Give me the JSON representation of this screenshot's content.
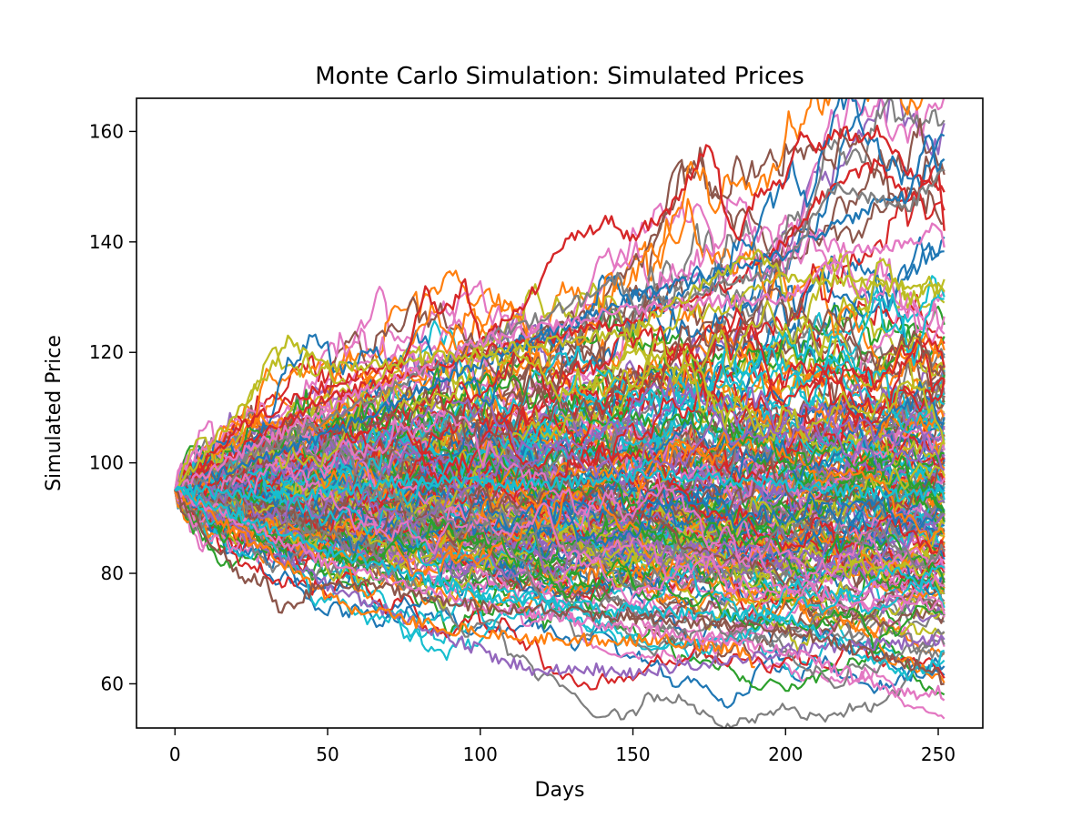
{
  "chart_data": {
    "type": "line",
    "title": "Monte Carlo Simulation: Simulated Prices",
    "xlabel": "Days",
    "ylabel": "Simulated Price",
    "xlim": [
      -12.6,
      264.6
    ],
    "ylim": [
      52,
      166
    ],
    "x_ticks": [
      0,
      50,
      100,
      150,
      200,
      250
    ],
    "y_ticks": [
      60,
      80,
      100,
      120,
      140,
      160
    ],
    "grid": false,
    "legend": "none",
    "colors": [
      "#1f77b4",
      "#ff7f0e",
      "#2ca02c",
      "#d62728",
      "#9467bd",
      "#8c564b",
      "#e377c2",
      "#7f7f7f",
      "#bcbd22",
      "#17becf"
    ],
    "simulation": {
      "start_price": 95,
      "days": 252,
      "paths": 200
    },
    "series": [
      {
        "color": "#d62728",
        "x": [
          0,
          20,
          40,
          60,
          75,
          80,
          82,
          85,
          90,
          93,
          95,
          97,
          100,
          110,
          120,
          125,
          130,
          135,
          140,
          143,
          145,
          150,
          155,
          160,
          165,
          170,
          173,
          175,
          178,
          180,
          185,
          190,
          195,
          200,
          203,
          205,
          210,
          215,
          220,
          225,
          230,
          235,
          240,
          245,
          250,
          252
        ],
        "y": [
          95,
          106,
          112,
          116,
          118,
          128,
          133,
          128,
          128,
          130,
          133,
          128,
          123,
          126,
          133,
          138,
          141,
          142,
          143,
          145,
          142,
          141,
          143,
          145,
          148,
          153,
          156,
          157,
          153,
          145,
          141,
          148,
          150,
          151,
          156,
          161,
          157,
          159,
          160,
          158,
          160,
          157,
          153,
          151,
          150,
          149
        ]
      },
      {
        "color": "#d62728",
        "x": [
          0,
          50,
          100,
          150,
          180,
          200,
          210,
          220,
          230,
          240,
          245,
          250,
          252
        ],
        "y": [
          95,
          112,
          120,
          126,
          132,
          140,
          147,
          152,
          154,
          148,
          150,
          154,
          142
        ]
      },
      {
        "color": "#1f77b4",
        "x": [
          0,
          50,
          100,
          150,
          200,
          220,
          230,
          240,
          245,
          247,
          250,
          252
        ],
        "y": [
          95,
          105,
          118,
          130,
          138,
          144,
          147,
          148,
          157,
          160,
          152,
          155
        ]
      },
      {
        "color": "#7f7f7f",
        "x": [
          0,
          50,
          100,
          140,
          145,
          150,
          200,
          215,
          240,
          252
        ],
        "y": [
          95,
          108,
          122,
          131,
          134,
          128,
          135,
          150,
          146,
          153
        ]
      },
      {
        "color": "#e377c2",
        "x": [
          0,
          50,
          100,
          150,
          200,
          220,
          240,
          245,
          250,
          252
        ],
        "y": [
          95,
          110,
          122,
          128,
          130,
          138,
          140,
          141,
          143,
          139
        ]
      },
      {
        "color": "#bcbd22",
        "x": [
          0,
          30,
          37,
          40,
          50,
          100,
          150,
          190,
          200,
          252
        ],
        "y": [
          95,
          116,
          122,
          121,
          117,
          120,
          124,
          138,
          134,
          131
        ]
      },
      {
        "color": "#9467bd",
        "x": [
          0,
          30,
          50,
          100,
          120,
          130,
          150,
          200,
          252
        ],
        "y": [
          95,
          84,
          78,
          66,
          62,
          63,
          62,
          66,
          68
        ]
      },
      {
        "color": "#ff7f0e",
        "x": [
          0,
          40,
          55,
          90,
          120,
          160,
          185,
          190
        ],
        "y": [
          95,
          80,
          74,
          70,
          68,
          68,
          66,
          63
        ]
      },
      {
        "color": "#e377c2",
        "x": [
          0,
          50,
          100,
          150,
          200,
          230,
          240,
          250,
          252
        ],
        "y": [
          95,
          82,
          74,
          70,
          66,
          60,
          58,
          59,
          57
        ]
      },
      {
        "color": "#17becf",
        "x": [
          0,
          50,
          100,
          150,
          200,
          230,
          240,
          250,
          252
        ],
        "y": [
          95,
          84,
          76,
          73,
          72,
          64,
          61,
          64,
          66
        ]
      },
      {
        "color": "#8c564b",
        "x": [
          0,
          20,
          30,
          35,
          40,
          50,
          100,
          200,
          250,
          252
        ],
        "y": [
          95,
          80,
          78,
          73,
          75,
          79,
          74,
          70,
          62,
          60
        ]
      },
      {
        "color": "#17becf",
        "x": [
          0,
          40,
          80,
          120,
          160,
          200,
          240,
          252
        ],
        "y": [
          95,
          94,
          97,
          96,
          98,
          96,
          94,
          95
        ]
      }
    ]
  }
}
